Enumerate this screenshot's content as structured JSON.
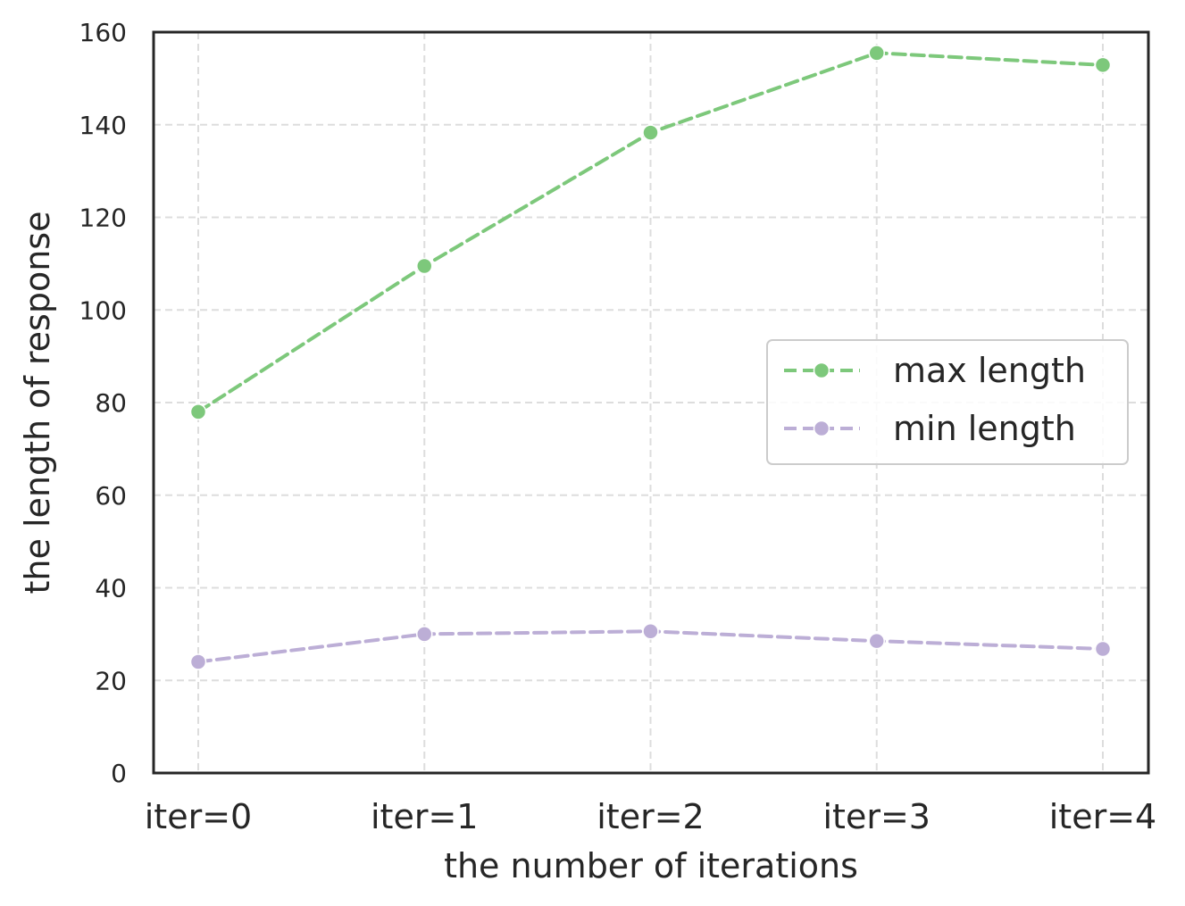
{
  "chart_data": {
    "type": "line",
    "title": "",
    "xlabel": "the number of iterations",
    "ylabel": "the length of response",
    "categories": [
      "iter=0",
      "iter=1",
      "iter=2",
      "iter=3",
      "iter=4"
    ],
    "ylim": [
      0,
      160
    ],
    "yticks": [
      0,
      20,
      40,
      60,
      80,
      100,
      120,
      140,
      160
    ],
    "grid": true,
    "legend_position": "center-right",
    "series": [
      {
        "name": "max length",
        "values": [
          78,
          109.5,
          138.3,
          155.5,
          152.9
        ],
        "color": "#7dc87b"
      },
      {
        "name": "min length",
        "values": [
          24,
          30,
          30.6,
          28.5,
          26.8
        ],
        "color": "#bcaed6"
      }
    ]
  }
}
